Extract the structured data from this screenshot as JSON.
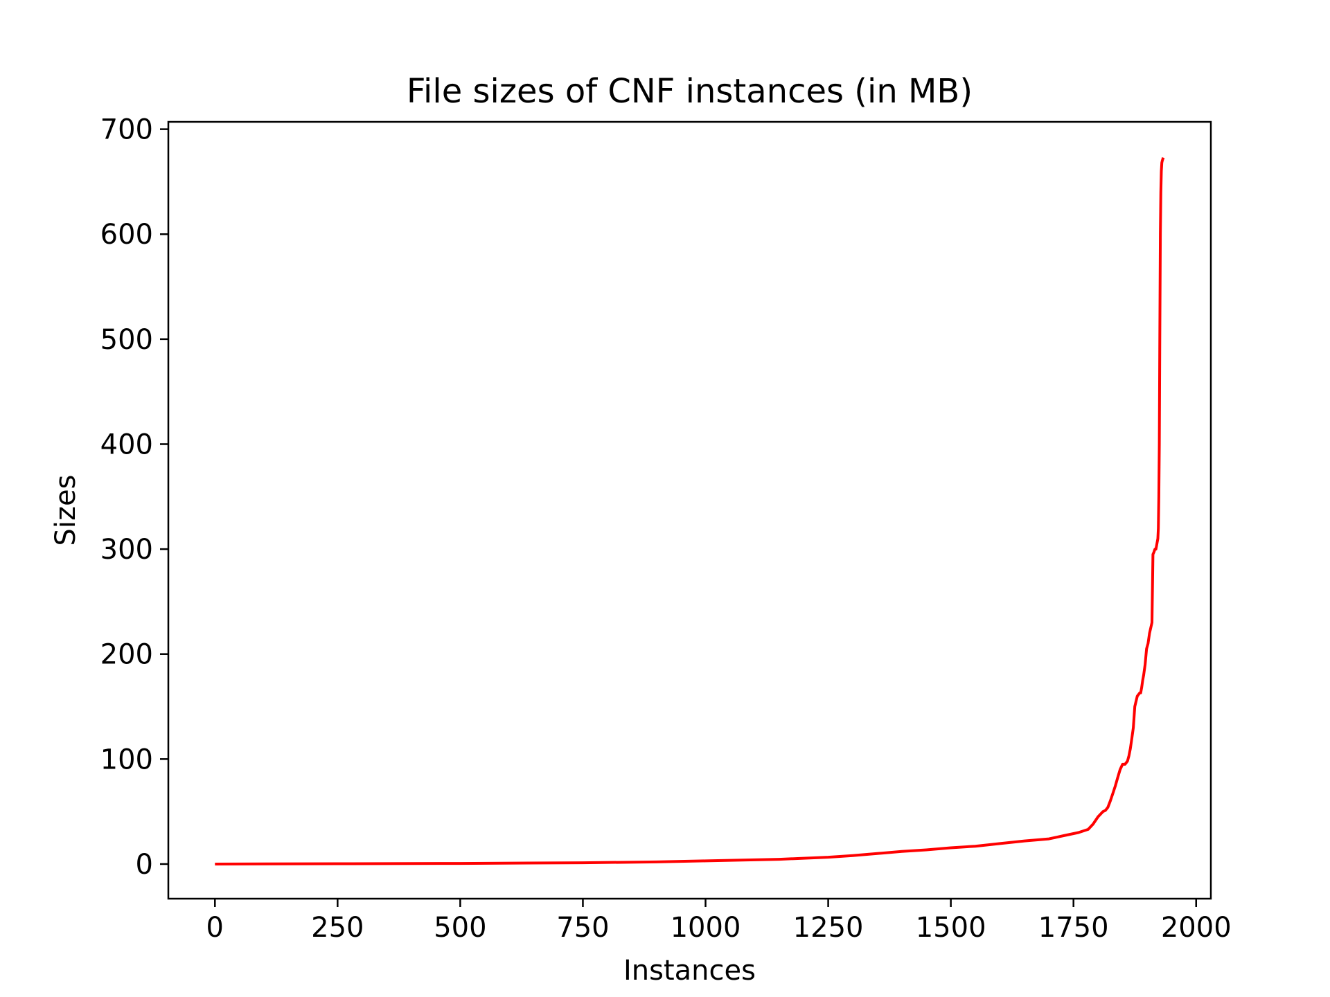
{
  "chart_data": {
    "type": "line",
    "title": "File sizes of CNF instances (in MB)",
    "xlabel": "Instances",
    "ylabel": "Sizes",
    "xlim": [
      -95,
      2030
    ],
    "ylim": [
      -33,
      707
    ],
    "xticks": [
      0,
      250,
      500,
      750,
      1000,
      1250,
      1500,
      1750,
      2000
    ],
    "yticks": [
      0,
      100,
      200,
      300,
      400,
      500,
      600,
      700
    ],
    "grid": false,
    "series": [
      {
        "color": "#ff0000",
        "x": [
          0,
          250,
          500,
          750,
          900,
          1000,
          1100,
          1150,
          1200,
          1250,
          1300,
          1350,
          1400,
          1450,
          1500,
          1550,
          1600,
          1650,
          1700,
          1730,
          1760,
          1780,
          1790,
          1800,
          1810,
          1815,
          1820,
          1825,
          1830,
          1835,
          1840,
          1845,
          1850,
          1855,
          1860,
          1863,
          1866,
          1869,
          1872,
          1875,
          1880,
          1885,
          1887,
          1889,
          1891,
          1893,
          1896,
          1899,
          1902,
          1905,
          1910,
          1912,
          1914,
          1916,
          1918,
          1920,
          1922,
          1923,
          1924,
          1925,
          1926,
          1927,
          1928,
          1929,
          1930,
          1931,
          1933
        ],
        "y": [
          0,
          0.3,
          0.6,
          1.2,
          2,
          3,
          4,
          4.5,
          5.5,
          6.5,
          8,
          10,
          12,
          13.5,
          15.5,
          17,
          19.5,
          22,
          24,
          27,
          30,
          33,
          38,
          45,
          50,
          51,
          54,
          60,
          67,
          74,
          82,
          90,
          95,
          95,
          98,
          103,
          110,
          120,
          130,
          150,
          160,
          163,
          163,
          168,
          175,
          180,
          190,
          205,
          210,
          220,
          230,
          295,
          297,
          300,
          300,
          305,
          310,
          320,
          350,
          400,
          500,
          600,
          640,
          660,
          668,
          670,
          673
        ]
      }
    ]
  }
}
